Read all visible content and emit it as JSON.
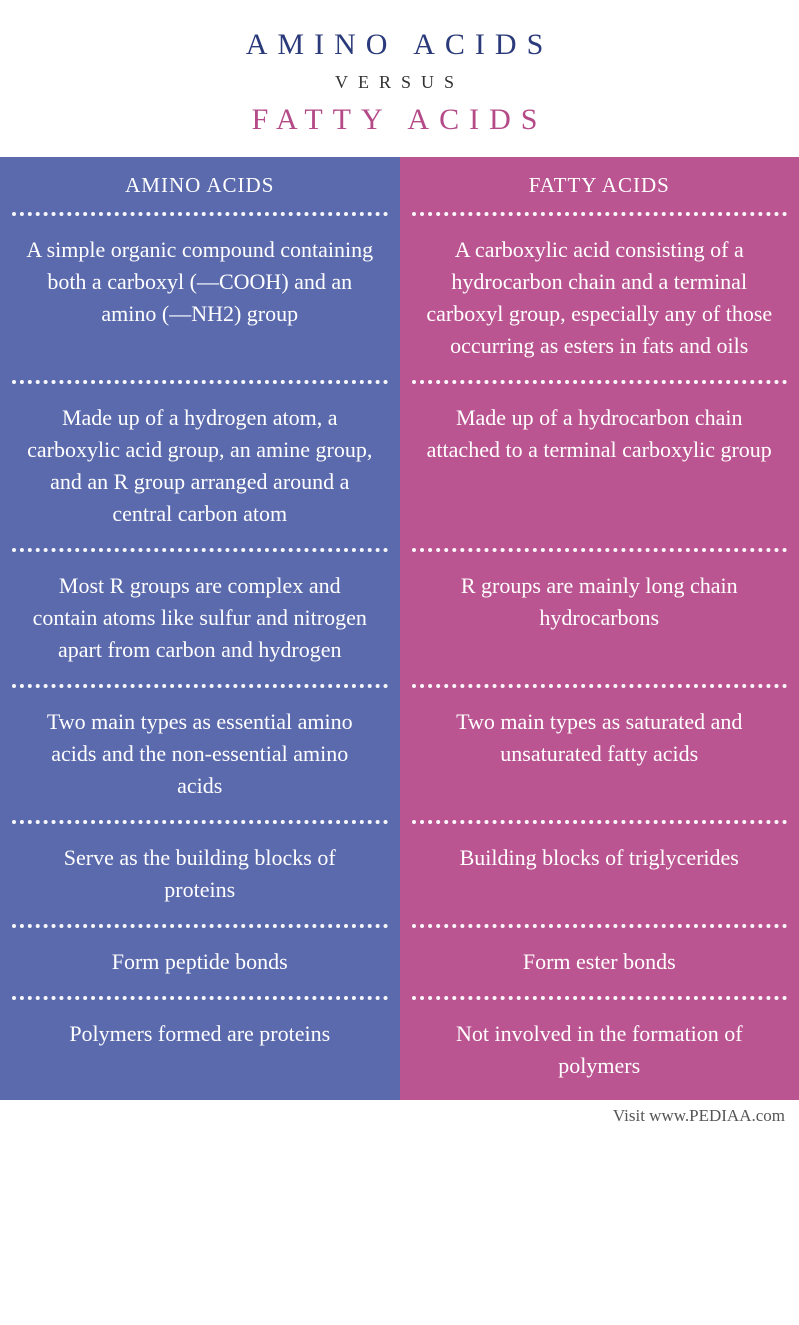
{
  "header": {
    "title_a": "AMINO ACIDS",
    "versus": "VERSUS",
    "title_b": "FATTY ACIDS",
    "color_a": "#2b3a7a",
    "color_b": "#b44a88"
  },
  "columns": {
    "left": {
      "header": "AMINO ACIDS",
      "bg_color": "#5b6aac",
      "divider_color": "#ffffff"
    },
    "right": {
      "header": "FATTY ACIDS",
      "bg_color": "#bb5591",
      "divider_color": "#ffffff"
    }
  },
  "rows": [
    {
      "left": "A  simple organic compound containing both a carboxyl (—COOH) and an amino (—NH2) group",
      "right": "A carboxylic acid consisting of a hydrocarbon chain and a terminal carboxyl group, especially any of those occurring as esters in fats and oils"
    },
    {
      "left": "Made up of a hydrogen atom, a carboxylic acid group, an amine group, and an R group arranged around a central carbon atom",
      "right": "Made up of a hydrocarbon chain attached to a terminal carboxylic group"
    },
    {
      "left": "Most R groups are complex and contain atoms like sulfur and nitrogen apart from carbon and hydrogen",
      "right": "R groups are mainly long chain hydrocarbons"
    },
    {
      "left": "Two main types as essential amino acids and the non-essential amino acids",
      "right": "Two main types as saturated and unsaturated fatty acids"
    },
    {
      "left": "Serve as the building blocks of proteins",
      "right": "Building blocks of triglycerides"
    },
    {
      "left": "Form peptide bonds",
      "right": "Form ester bonds"
    },
    {
      "left": "Polymers formed are proteins",
      "right": "Not involved in the formation of polymers"
    }
  ],
  "footer": {
    "text": "Visit www.PEDIAA.com"
  },
  "style": {
    "body_font": "Georgia, serif",
    "cell_fontsize": 22,
    "header_fontsize": 21,
    "title_fontsize": 30,
    "title_letter_spacing": 10,
    "text_color": "#ffffff"
  }
}
